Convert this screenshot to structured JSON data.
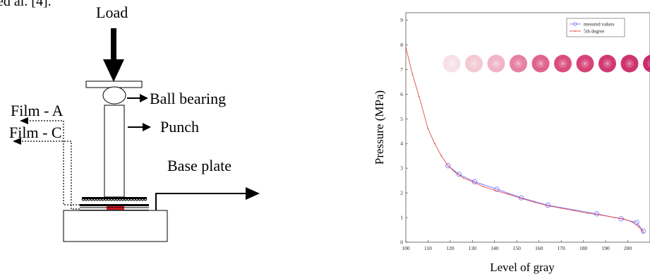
{
  "header_fragment": "ed al. [4].",
  "apparatus": {
    "load_label": "Load",
    "ball_bearing_label": "Ball bearing",
    "punch_label": "Punch",
    "film_a_label": "Film - A",
    "film_c_label": "Film - C",
    "base_plate_label": "Base plate",
    "contact_color": "#e8212b"
  },
  "chart_data": {
    "type": "line",
    "xlabel": "Level of gray",
    "ylabel": "Pressure (MPa)",
    "xlim": [
      100,
      210
    ],
    "ylim": [
      0,
      9.3
    ],
    "x_ticks": [
      100,
      110,
      120,
      130,
      140,
      150,
      160,
      170,
      180,
      190,
      200
    ],
    "y_ticks": [
      0,
      1,
      2,
      3,
      4,
      5,
      6,
      7,
      8,
      9
    ],
    "grid": true,
    "legend_position": "top-right",
    "series": [
      {
        "name": "mesured values",
        "color": "#7b7bff",
        "marker": "circle",
        "x": [
          119,
          124,
          131,
          141,
          152,
          164,
          186,
          197,
          204,
          207
        ],
        "y": [
          3.1,
          2.75,
          2.45,
          2.15,
          1.8,
          1.5,
          1.15,
          0.95,
          0.8,
          0.45
        ]
      },
      {
        "name": "5th degree",
        "color": "#e24a4a",
        "marker": "dot",
        "x": [
          100,
          103,
          106,
          110,
          113,
          116,
          119,
          122,
          126,
          130,
          135,
          140,
          146,
          152,
          158,
          164,
          170,
          176,
          182,
          188,
          194,
          198,
          202,
          205,
          207
        ],
        "y": [
          7.9,
          6.8,
          5.9,
          4.6,
          4.0,
          3.5,
          3.1,
          2.85,
          2.6,
          2.45,
          2.25,
          2.1,
          1.95,
          1.78,
          1.62,
          1.48,
          1.38,
          1.28,
          1.18,
          1.1,
          1.0,
          0.95,
          0.82,
          0.62,
          0.4
        ]
      }
    ],
    "inset_swatches": {
      "description": "pressure-film color samples",
      "colors": [
        "#f7dfe6",
        "#f2c6d3",
        "#eeb0c3",
        "#e57a9c",
        "#de5b86",
        "#d84477",
        "#d43a70",
        "#cf2e69",
        "#cc2866",
        "#c82262"
      ]
    }
  }
}
